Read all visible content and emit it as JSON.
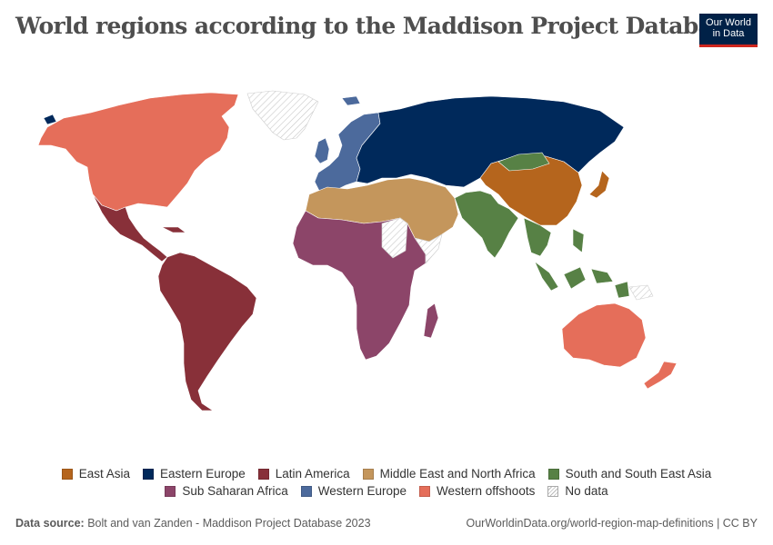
{
  "title": "World regions according to the Maddison Project Database",
  "logo": {
    "line1": "Our World",
    "line2": "in Data"
  },
  "legend": [
    {
      "key": "east_asia",
      "label": "East Asia",
      "color": "#b5651d"
    },
    {
      "key": "eastern_europe",
      "label": "Eastern Europe",
      "color": "#00295b"
    },
    {
      "key": "latin_america",
      "label": "Latin America",
      "color": "#883039"
    },
    {
      "key": "mena",
      "label": "Middle East and North Africa",
      "color": "#c4965c"
    },
    {
      "key": "south_se_asia",
      "label": "South and South East Asia",
      "color": "#578145"
    },
    {
      "key": "ssa",
      "label": "Sub Saharan Africa",
      "color": "#8c4569"
    },
    {
      "key": "western_europe",
      "label": "Western Europe",
      "color": "#4c6a9c"
    },
    {
      "key": "western_offshoots",
      "label": "Western offshoots",
      "color": "#e56e5a"
    },
    {
      "key": "no_data",
      "label": "No data",
      "pattern": "hatched"
    }
  ],
  "footer": {
    "source_label": "Data source:",
    "source_text": "Bolt and van Zanden - Maddison Project Database 2023",
    "url": "OurWorldinData.org/world-region-map-definitions | CC BY"
  }
}
